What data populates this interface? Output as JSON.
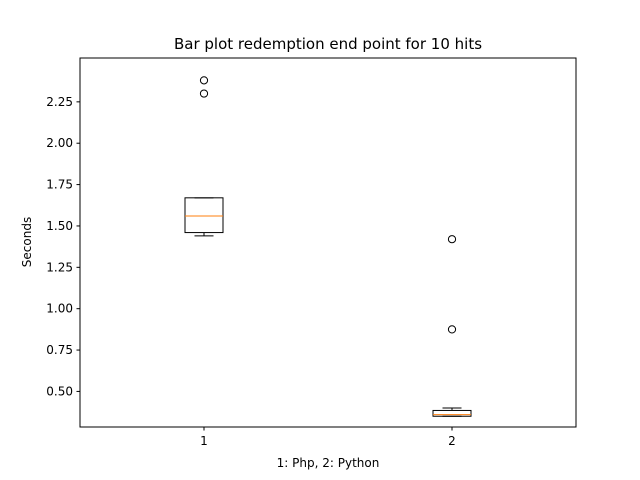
{
  "chart_data": {
    "type": "box",
    "title": "Bar plot redemption end point for 10 hits",
    "xlabel": "1: Php, 2: Python",
    "ylabel": "Seconds",
    "categories": [
      "1",
      "2"
    ],
    "boxes": [
      {
        "position": 1,
        "whisker_low": 1.44,
        "q1": 1.46,
        "median": 1.56,
        "q3": 1.67,
        "whisker_high": 1.67,
        "fliers": [
          2.3,
          2.38
        ]
      },
      {
        "position": 2,
        "whisker_low": 0.35,
        "q1": 0.35,
        "median": 0.36,
        "q3": 0.385,
        "whisker_high": 0.4,
        "fliers": [
          0.875,
          1.42
        ]
      }
    ],
    "xlim": [
      0.5,
      2.5
    ],
    "ylim": [
      0.285,
      2.515
    ],
    "yticks": [
      0.5,
      0.75,
      1.0,
      1.25,
      1.5,
      1.75,
      2.0,
      2.25
    ],
    "ytick_labels": [
      "0.50",
      "0.75",
      "1.00",
      "1.25",
      "1.50",
      "1.75",
      "2.00",
      "2.25"
    ],
    "xticks": [
      1,
      2
    ],
    "grid": false,
    "colors": {
      "box": "#000000",
      "median": "#ff7f0e",
      "flier": "#000000",
      "frame": "#000000"
    }
  }
}
